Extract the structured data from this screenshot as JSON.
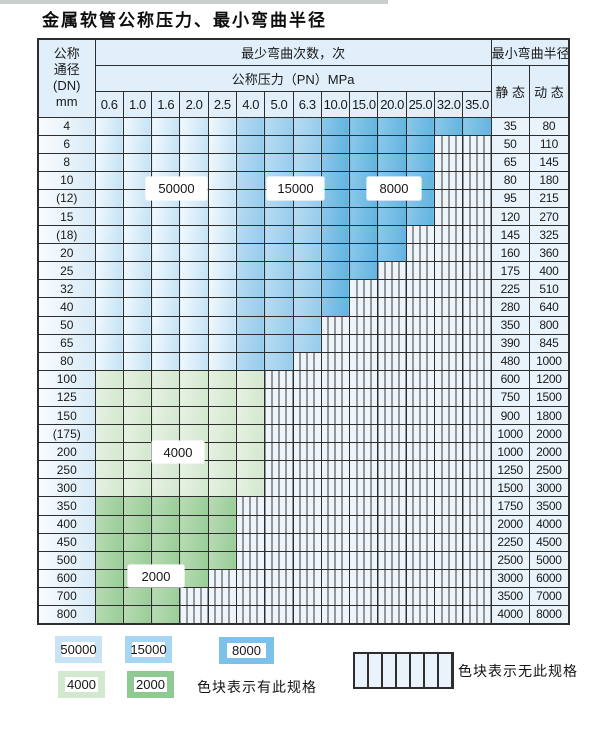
{
  "page": {
    "title": "金属软管公称压力、最小弯曲半径"
  },
  "table": {
    "corner": {
      "line1": "公称",
      "line2": "通径",
      "line3": "(DN)",
      "line4": "mm"
    },
    "bend_times_header": "最少弯曲次数，次",
    "pressure_header": "公称压力（PN）MPa",
    "radius_header": "最小弯曲半径",
    "static_header": "静 态",
    "dynamic_header": "动 态",
    "pressure_columns": [
      "0.6",
      "1.0",
      "1.6",
      "2.0",
      "2.5",
      "4.0",
      "5.0",
      "6.3",
      "10.0",
      "15.0",
      "20.0",
      "25.0",
      "32.0",
      "35.0"
    ],
    "zone_by_column": [
      "50000",
      "50000",
      "50000",
      "50000",
      "50000",
      "15000",
      "15000",
      "15000",
      "8000",
      "8000",
      "8000",
      "8000",
      "8000",
      "8000"
    ],
    "rows": [
      {
        "dn": "4",
        "colored_through": 13,
        "static": "35",
        "dynamic": "80",
        "zone": "blue"
      },
      {
        "dn": "6",
        "colored_through": 11,
        "static": "50",
        "dynamic": "110",
        "zone": "blue"
      },
      {
        "dn": "8",
        "colored_through": 11,
        "static": "65",
        "dynamic": "145",
        "zone": "blue"
      },
      {
        "dn": "10",
        "colored_through": 11,
        "static": "80",
        "dynamic": "180",
        "zone": "blue"
      },
      {
        "dn": "(12)",
        "colored_through": 11,
        "static": "95",
        "dynamic": "215",
        "zone": "blue"
      },
      {
        "dn": "15",
        "colored_through": 11,
        "static": "120",
        "dynamic": "270",
        "zone": "blue"
      },
      {
        "dn": "(18)",
        "colored_through": 10,
        "static": "145",
        "dynamic": "325",
        "zone": "blue"
      },
      {
        "dn": "20",
        "colored_through": 10,
        "static": "160",
        "dynamic": "360",
        "zone": "blue"
      },
      {
        "dn": "25",
        "colored_through": 9,
        "static": "175",
        "dynamic": "400",
        "zone": "blue"
      },
      {
        "dn": "32",
        "colored_through": 8,
        "static": "225",
        "dynamic": "510",
        "zone": "blue"
      },
      {
        "dn": "40",
        "colored_through": 8,
        "static": "280",
        "dynamic": "640",
        "zone": "blue"
      },
      {
        "dn": "50",
        "colored_through": 7,
        "static": "350",
        "dynamic": "800",
        "zone": "blue"
      },
      {
        "dn": "65",
        "colored_through": 7,
        "static": "390",
        "dynamic": "845",
        "zone": "blue"
      },
      {
        "dn": "80",
        "colored_through": 6,
        "static": "480",
        "dynamic": "1000",
        "zone": "blue"
      },
      {
        "dn": "100",
        "colored_through": 5,
        "static": "600",
        "dynamic": "1200",
        "zone": "green4"
      },
      {
        "dn": "125",
        "colored_through": 5,
        "static": "750",
        "dynamic": "1500",
        "zone": "green4"
      },
      {
        "dn": "150",
        "colored_through": 5,
        "static": "900",
        "dynamic": "1800",
        "zone": "green4"
      },
      {
        "dn": "(175)",
        "colored_through": 5,
        "static": "1000",
        "dynamic": "2000",
        "zone": "green4"
      },
      {
        "dn": "200",
        "colored_through": 5,
        "static": "1000",
        "dynamic": "2000",
        "zone": "green4"
      },
      {
        "dn": "250",
        "colored_through": 5,
        "static": "1250",
        "dynamic": "2500",
        "zone": "green4"
      },
      {
        "dn": "300",
        "colored_through": 5,
        "static": "1500",
        "dynamic": "3000",
        "zone": "green4"
      },
      {
        "dn": "350",
        "colored_through": 4,
        "static": "1750",
        "dynamic": "3500",
        "zone": "green2"
      },
      {
        "dn": "400",
        "colored_through": 4,
        "static": "2000",
        "dynamic": "4000",
        "zone": "green2"
      },
      {
        "dn": "450",
        "colored_through": 4,
        "static": "2250",
        "dynamic": "4500",
        "zone": "green2"
      },
      {
        "dn": "500",
        "colored_through": 4,
        "static": "2500",
        "dynamic": "5000",
        "zone": "green2"
      },
      {
        "dn": "600",
        "colored_through": 3,
        "static": "3000",
        "dynamic": "6000",
        "zone": "green2"
      },
      {
        "dn": "700",
        "colored_through": 2,
        "static": "3500",
        "dynamic": "7000",
        "zone": "green2"
      },
      {
        "dn": "800",
        "colored_through": 2,
        "static": "4000",
        "dynamic": "8000",
        "zone": "green2"
      }
    ]
  },
  "overlays": [
    {
      "label": "50000"
    },
    {
      "label": "15000"
    },
    {
      "label": "8000"
    },
    {
      "label": "4000"
    },
    {
      "label": "2000"
    }
  ],
  "legend": {
    "has_spec_items": [
      {
        "value": "50000",
        "color": "#c8e3f6"
      },
      {
        "value": "15000",
        "color": "#a6d6f2"
      },
      {
        "value": "8000",
        "color": "#7cc1e9"
      },
      {
        "value": "4000",
        "color": "#d2e8cf"
      },
      {
        "value": "2000",
        "color": "#90ca93"
      }
    ],
    "has_spec_text": "色块表示有此规格",
    "no_spec_text": "色块表示无此规格"
  },
  "colors": {
    "blue_50000": "#c3e2f5",
    "blue_15000": "#9fd0ee",
    "blue_8000": "#6eb9e4",
    "green_4000": "#d6eacf",
    "green_2000": "#9ecf9c",
    "header_bg": "#e0effa",
    "grid": "#2e2e2e"
  }
}
